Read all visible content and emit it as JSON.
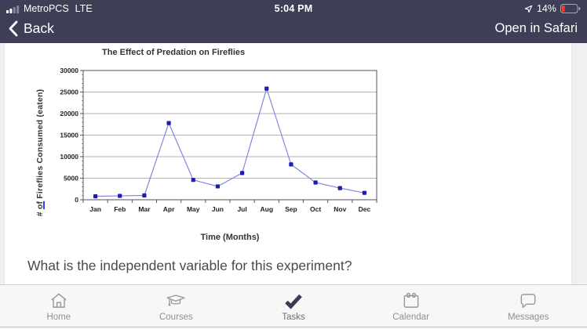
{
  "status_bar": {
    "carrier": "MetroPCS",
    "network": "LTE",
    "time": "5:04 PM",
    "battery_percent": "14%",
    "battery_color": "#ff3b30"
  },
  "nav_bar": {
    "background": "#3e3e56",
    "back_label": "Back",
    "right_action": "Open in Safari"
  },
  "content": {
    "question": "What is the independent variable for this experiment?"
  },
  "chart_data": {
    "type": "line",
    "title": "The Effect of Predation on Fireflies",
    "xlabel": "Time (Months)",
    "ylabel_prefix": "# ",
    "ylabel_underlined": "of",
    "ylabel_suffix": " Fireflies Consumed  (eaten)",
    "categories": [
      "Jan",
      "Feb",
      "Mar",
      "Apr",
      "May",
      "Jun",
      "Jul",
      "Aug",
      "Sep",
      "Oct",
      "Nov",
      "Dec"
    ],
    "values": [
      800,
      900,
      1000,
      17800,
      4600,
      3100,
      6200,
      25800,
      8200,
      4000,
      2700,
      1600
    ],
    "ylim": [
      0,
      30000
    ],
    "ytick_step": 5000,
    "yminor_step": 1000,
    "grid": true,
    "legend": "none",
    "line_color": "#8585de",
    "marker_color": "#1d1dae",
    "grid_color": "#999999",
    "axis_color": "#555555"
  },
  "tab_bar": {
    "active_color": "#3b3b55",
    "inactive_color": "#97979e",
    "items": [
      {
        "label": "Home",
        "icon": "home-icon",
        "active": false
      },
      {
        "label": "Courses",
        "icon": "graduation-cap-icon",
        "active": false
      },
      {
        "label": "Tasks",
        "icon": "checkmark-icon",
        "active": true
      },
      {
        "label": "Calendar",
        "icon": "calendar-icon",
        "active": false
      },
      {
        "label": "Messages",
        "icon": "message-bubble-icon",
        "active": false
      }
    ]
  }
}
